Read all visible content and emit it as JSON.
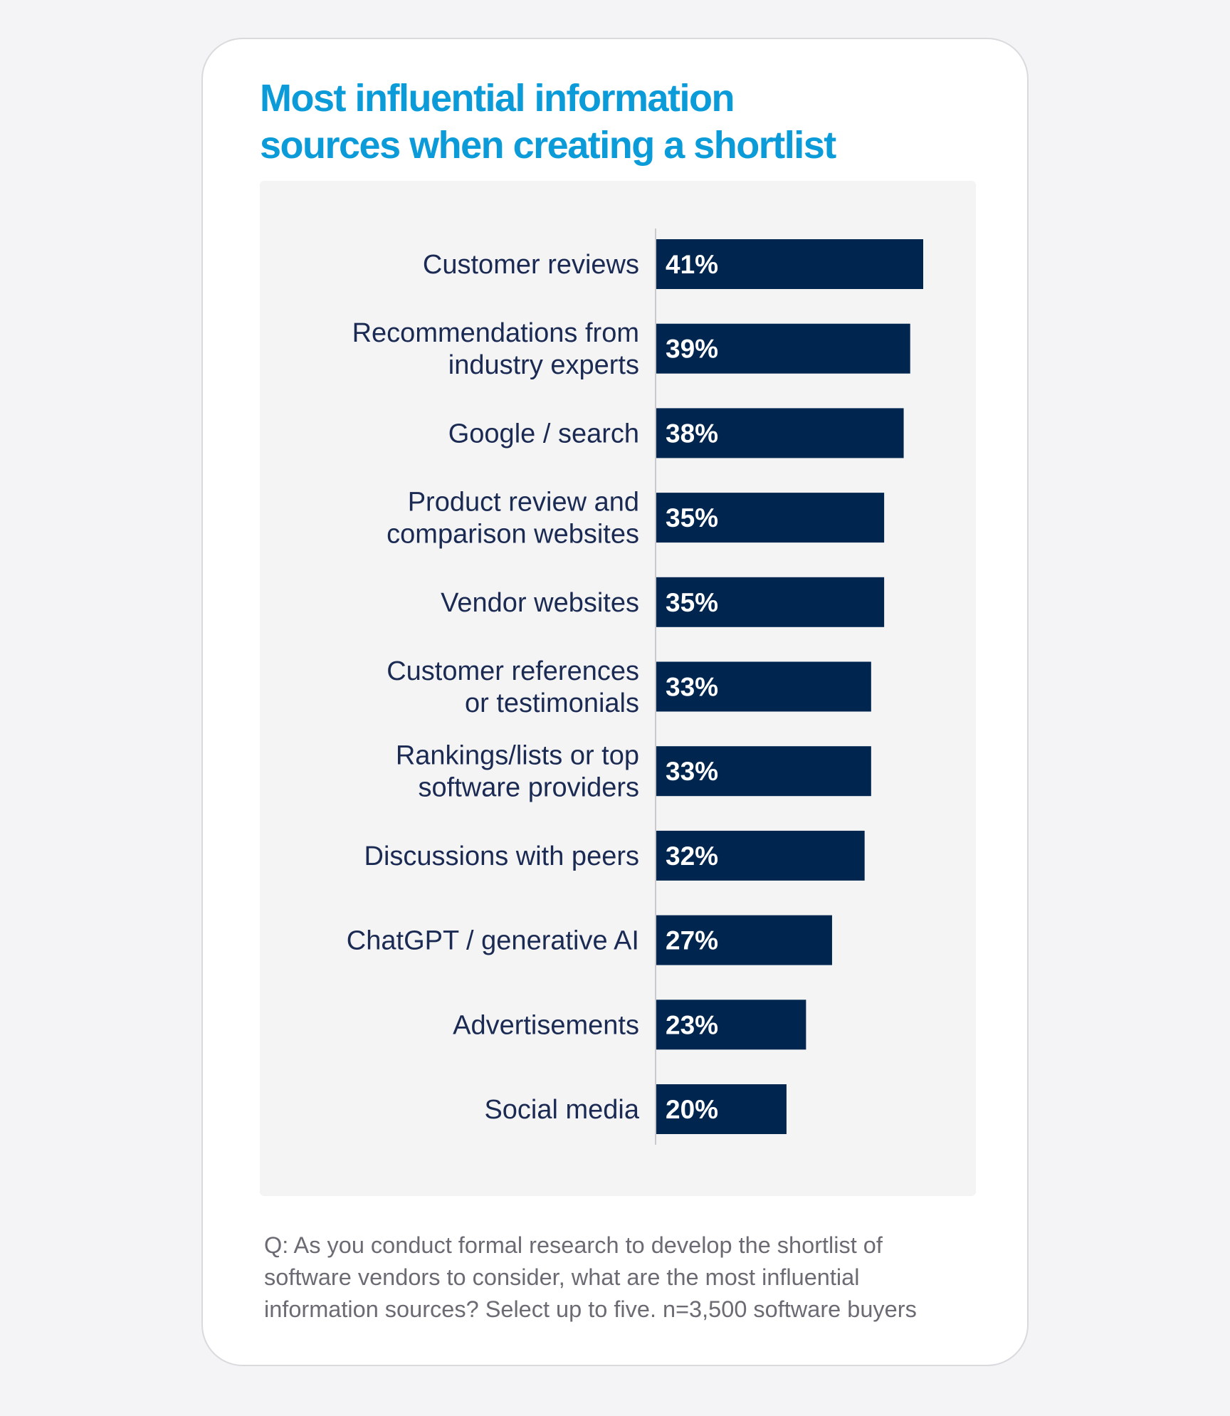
{
  "colors": {
    "title": "#0a9bd8",
    "bar": "#00264f",
    "label": "#1a2a52",
    "footnote": "#6b6b73",
    "panel": "#f4f4f5"
  },
  "chart_data": {
    "type": "bar",
    "orientation": "horizontal",
    "title_lines": [
      "Most influential information",
      "sources when creating a shortlist"
    ],
    "categories": [
      [
        "Customer reviews"
      ],
      [
        "Recommendations from",
        "industry experts"
      ],
      [
        "Google / search"
      ],
      [
        "Product review and",
        "comparison websites"
      ],
      [
        "Vendor websites"
      ],
      [
        "Customer references",
        "or testimonials"
      ],
      [
        "Rankings/lists or top",
        "software providers"
      ],
      [
        "Discussions with peers"
      ],
      [
        "ChatGPT / generative AI"
      ],
      [
        "Advertisements"
      ],
      [
        "Social media"
      ]
    ],
    "values": [
      41,
      39,
      38,
      35,
      35,
      33,
      33,
      32,
      27,
      23,
      20
    ],
    "value_labels": [
      "41%",
      "39%",
      "38%",
      "35%",
      "35%",
      "33%",
      "33%",
      "32%",
      "27%",
      "23%",
      "20%"
    ],
    "unit": "%",
    "xlim": [
      0,
      41
    ],
    "grid": false,
    "legend": false
  },
  "footnote_lines": [
    "Q: As you conduct formal research to develop the shortlist of",
    "software vendors to consider, what are the most influential",
    "information sources? Select up to five. n=3,500 software buyers"
  ]
}
